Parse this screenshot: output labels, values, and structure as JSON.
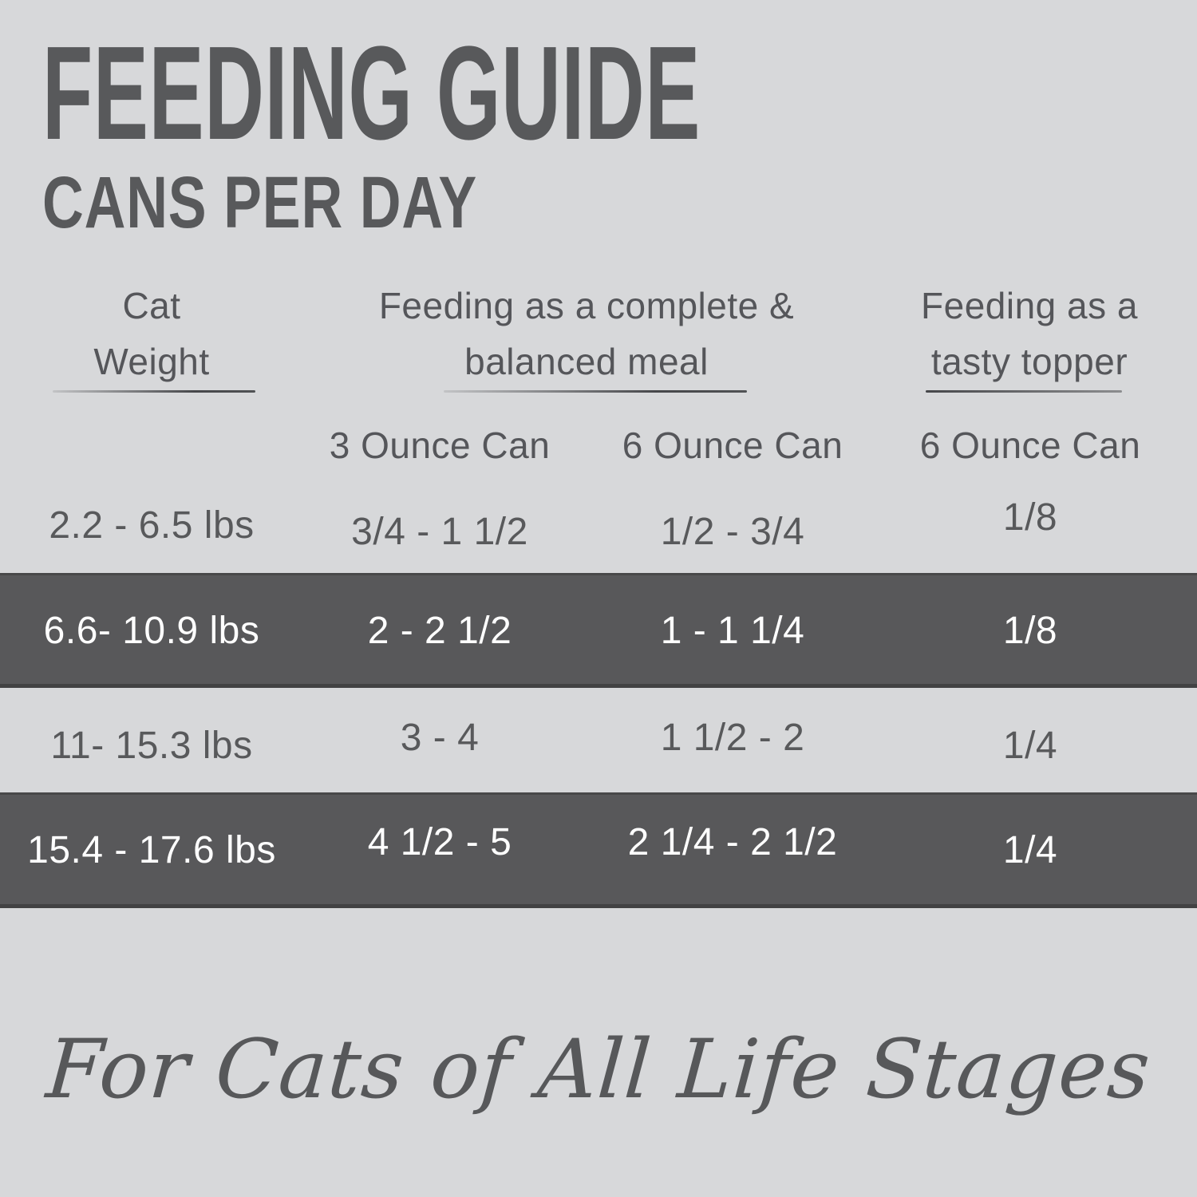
{
  "title": "FEEDING GUIDE",
  "subtitle": "CANS PER DAY",
  "table": {
    "group_headers": {
      "weight": {
        "line1": "Cat",
        "line2": "Weight"
      },
      "meal": {
        "line1": "Feeding as a complete &",
        "line2": "balanced meal"
      },
      "topper": {
        "line1": "Feeding as a",
        "line2": "tasty topper"
      }
    },
    "sub_headers": {
      "meal_3oz": "3 Ounce Can",
      "meal_6oz": "6 Ounce Can",
      "topper_6oz": "6 Ounce Can"
    },
    "rows": [
      {
        "weight": "2.2 - 6.5 lbs",
        "meal_3oz": "3/4 - 1 1/2",
        "meal_6oz": "1/2 - 3/4",
        "topper_6oz": "1/8",
        "highlight": false
      },
      {
        "weight": "6.6- 10.9 lbs",
        "meal_3oz": "2 - 2 1/2",
        "meal_6oz": "1 - 1 1/4",
        "topper_6oz": "1/8",
        "highlight": true
      },
      {
        "weight": "11- 15.3 lbs",
        "meal_3oz": "3 - 4",
        "meal_6oz": "1 1/2 - 2",
        "topper_6oz": "1/4",
        "highlight": false
      },
      {
        "weight": "15.4 - 17.6 lbs",
        "meal_3oz": "4 1/2 - 5",
        "meal_6oz": "2 1/4 - 2 1/2",
        "topper_6oz": "1/4",
        "highlight": true
      }
    ]
  },
  "footer": {
    "tagline": "For Cats of All Life Stages"
  },
  "colors": {
    "background": "#d7d8da",
    "band_dark": "#58585a",
    "text_dark": "#58595b",
    "text_on_dark": "#ffffff"
  }
}
